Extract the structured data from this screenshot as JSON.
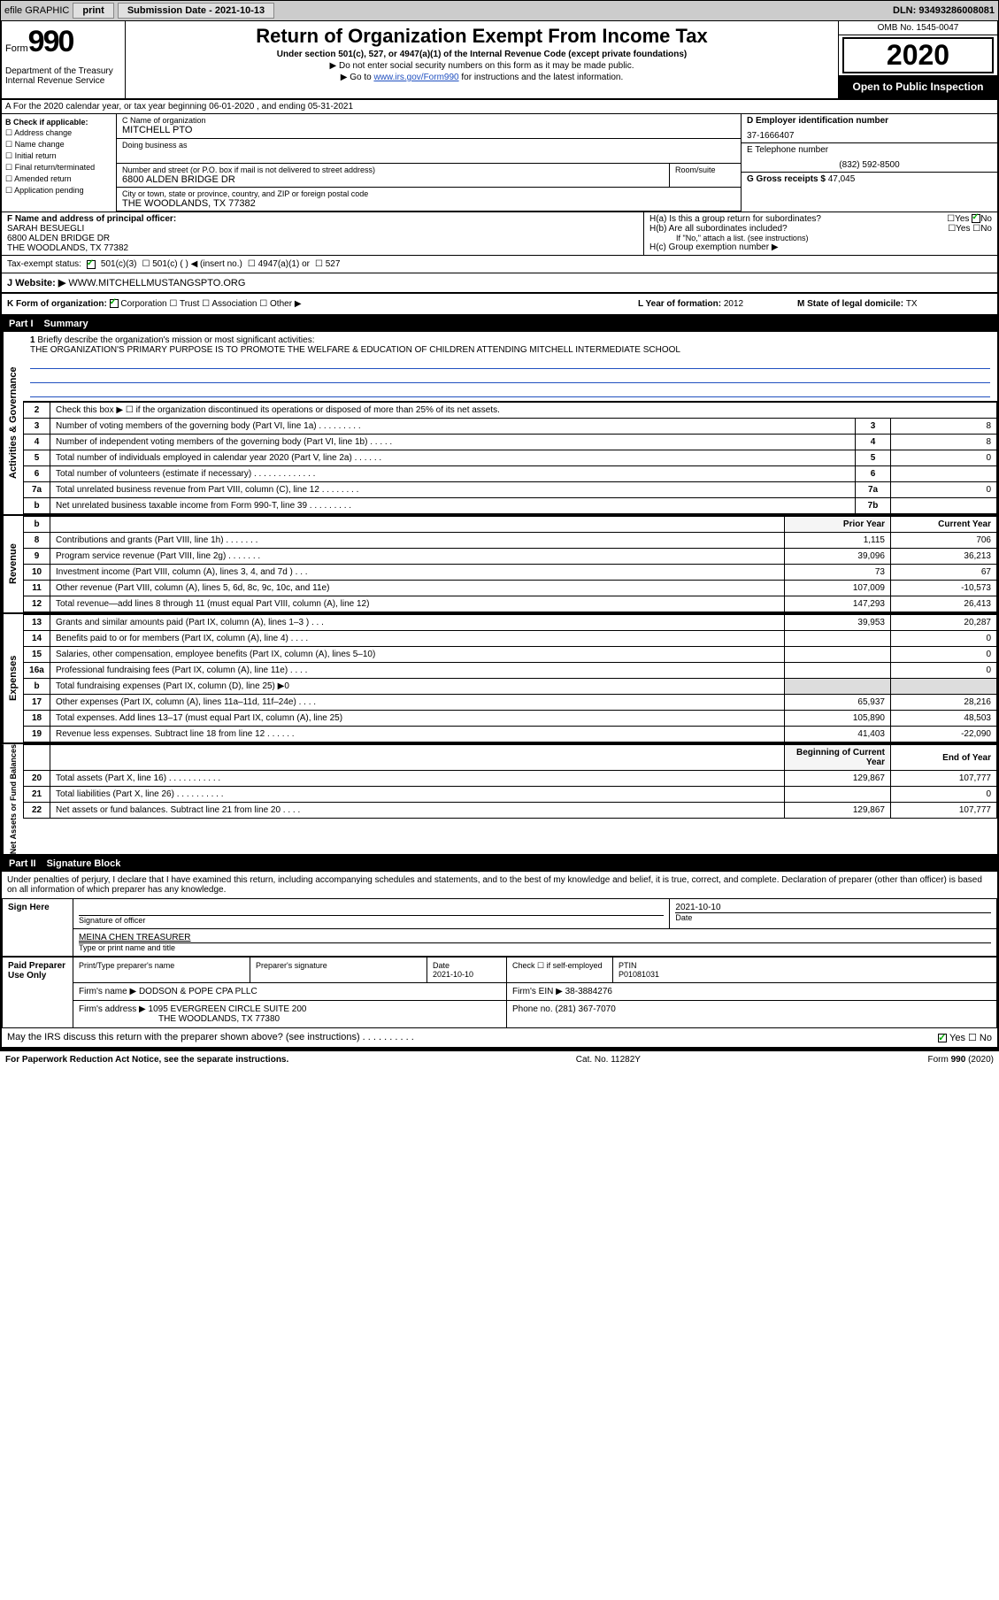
{
  "topbar": {
    "efile": "efile GRAPHIC",
    "print": "print",
    "subdate_label": "Submission Date - 2021-10-13",
    "dln": "DLN: 93493286008081"
  },
  "header": {
    "form_word": "Form",
    "form_num": "990",
    "dept": "Department of the Treasury\nInternal Revenue Service",
    "title": "Return of Organization Exempt From Income Tax",
    "sub": "Under section 501(c), 527, or 4947(a)(1) of the Internal Revenue Code (except private foundations)",
    "note1": "▶ Do not enter social security numbers on this form as it may be made public.",
    "note2_pre": "▶ Go to ",
    "note2_link": "www.irs.gov/Form990",
    "note2_post": " for instructions and the latest information.",
    "omb": "OMB No. 1545-0047",
    "year": "2020",
    "open": "Open to Public Inspection"
  },
  "rowA": "A For the 2020 calendar year, or tax year beginning 06-01-2020   , and ending 05-31-2021",
  "colB": {
    "hdr": "B Check if applicable:",
    "items": [
      "Address change",
      "Name change",
      "Initial return",
      "Final return/terminated",
      "Amended return",
      "Application pending"
    ]
  },
  "colC": {
    "name_lbl": "C Name of organization",
    "name": "MITCHELL PTO",
    "dba_lbl": "Doing business as",
    "dba": "",
    "addr_lbl": "Number and street (or P.O. box if mail is not delivered to street address)",
    "room_lbl": "Room/suite",
    "addr": "6800 ALDEN BRIDGE DR",
    "city_lbl": "City or town, state or province, country, and ZIP or foreign postal code",
    "city": "THE WOODLANDS, TX  77382"
  },
  "colD": {
    "ein_lbl": "D Employer identification number",
    "ein": "37-1666407",
    "tel_lbl": "E Telephone number",
    "tel": "(832) 592-8500",
    "gross_lbl": "G Gross receipts $ ",
    "gross": "47,045"
  },
  "colF": {
    "lbl": "F Name and address of principal officer:",
    "name": "SARAH BESUEGLI",
    "addr1": "6800 ALDEN BRIDGE DR",
    "addr2": "THE WOODLANDS, TX  77382"
  },
  "colH": {
    "a": "H(a)  Is this a group return for subordinates?",
    "b": "H(b)  Are all subordinates included?",
    "bnote": "If \"No,\" attach a list. (see instructions)",
    "c": "H(c)  Group exemption number ▶"
  },
  "taxStatus": {
    "lbl": "Tax-exempt status:",
    "opt1": "501(c)(3)",
    "opt2": "501(c) (  ) ◀ (insert no.)",
    "opt3": "4947(a)(1) or",
    "opt4": "527"
  },
  "website": {
    "lbl": "J   Website: ▶",
    "val": "WWW.MITCHELLMUSTANGSPTO.ORG"
  },
  "rowK": {
    "lbl": "K Form of organization:",
    "opts": [
      "Corporation",
      "Trust",
      "Association",
      "Other ▶"
    ],
    "year_lbl": "L Year of formation: ",
    "year": "2012",
    "state_lbl": "M State of legal domicile: ",
    "state": "TX"
  },
  "part1": {
    "pn": "Part I",
    "pt": "Summary"
  },
  "line1": {
    "num": "1",
    "desc": "Briefly describe the organization's mission or most significant activities:",
    "mission": "THE ORGANIZATION'S PRIMARY PURPOSE IS TO PROMOTE THE WELFARE & EDUCATION OF CHILDREN ATTENDING MITCHELL INTERMEDIATE SCHOOL"
  },
  "govLines": [
    {
      "n": "2",
      "d": "Check this box ▶ ☐  if the organization discontinued its operations or disposed of more than 25% of its net assets.",
      "b": "",
      "v": ""
    },
    {
      "n": "3",
      "d": "Number of voting members of the governing body (Part VI, line 1a)  .   .   .   .   .   .   .   .   .",
      "b": "3",
      "v": "8"
    },
    {
      "n": "4",
      "d": "Number of independent voting members of the governing body (Part VI, line 1b)  .   .   .   .   .",
      "b": "4",
      "v": "8"
    },
    {
      "n": "5",
      "d": "Total number of individuals employed in calendar year 2020 (Part V, line 2a)  .   .   .   .   .   .",
      "b": "5",
      "v": "0"
    },
    {
      "n": "6",
      "d": "Total number of volunteers (estimate if necessary)   .   .   .   .   .   .   .   .   .   .   .   .   .",
      "b": "6",
      "v": ""
    },
    {
      "n": "7a",
      "d": "Total unrelated business revenue from Part VIII, column (C), line 12  .   .   .   .   .   .   .   .",
      "b": "7a",
      "v": "0"
    },
    {
      "n": "b",
      "d": "Net unrelated business taxable income from Form 990-T, line 39   .   .   .   .   .   .   .   .   .",
      "b": "7b",
      "v": ""
    }
  ],
  "revHdr": {
    "pri": "Prior Year",
    "cur": "Current Year"
  },
  "revLines": [
    {
      "n": "8",
      "d": "Contributions and grants (Part VIII, line 1h)   .   .   .   .   .   .   .",
      "p": "1,115",
      "c": "706"
    },
    {
      "n": "9",
      "d": "Program service revenue (Part VIII, line 2g)   .   .   .   .   .   .   .",
      "p": "39,096",
      "c": "36,213"
    },
    {
      "n": "10",
      "d": "Investment income (Part VIII, column (A), lines 3, 4, and 7d )  .   .   .",
      "p": "73",
      "c": "67"
    },
    {
      "n": "11",
      "d": "Other revenue (Part VIII, column (A), lines 5, 6d, 8c, 9c, 10c, and 11e)",
      "p": "107,009",
      "c": "-10,573"
    },
    {
      "n": "12",
      "d": "Total revenue—add lines 8 through 11 (must equal Part VIII, column (A), line 12)",
      "p": "147,293",
      "c": "26,413"
    }
  ],
  "expLines": [
    {
      "n": "13",
      "d": "Grants and similar amounts paid (Part IX, column (A), lines 1–3 )  .   .   .",
      "p": "39,953",
      "c": "20,287"
    },
    {
      "n": "14",
      "d": "Benefits paid to or for members (Part IX, column (A), line 4)  .   .   .   .",
      "p": "",
      "c": "0"
    },
    {
      "n": "15",
      "d": "Salaries, other compensation, employee benefits (Part IX, column (A), lines 5–10)",
      "p": "",
      "c": "0"
    },
    {
      "n": "16a",
      "d": "Professional fundraising fees (Part IX, column (A), line 11e)  .   .   .   .",
      "p": "",
      "c": "0"
    },
    {
      "n": "b",
      "d": "Total fundraising expenses (Part IX, column (D), line 25) ▶0",
      "p": "SHADE",
      "c": "SHADE"
    },
    {
      "n": "17",
      "d": "Other expenses (Part IX, column (A), lines 11a–11d, 11f–24e)  .   .   .   .",
      "p": "65,937",
      "c": "28,216"
    },
    {
      "n": "18",
      "d": "Total expenses. Add lines 13–17 (must equal Part IX, column (A), line 25)",
      "p": "105,890",
      "c": "48,503"
    },
    {
      "n": "19",
      "d": "Revenue less expenses. Subtract line 18 from line 12  .   .   .   .   .   .",
      "p": "41,403",
      "c": "-22,090"
    }
  ],
  "netHdr": {
    "b": "Beginning of Current Year",
    "e": "End of Year"
  },
  "netLines": [
    {
      "n": "20",
      "d": "Total assets (Part X, line 16)  .   .   .   .   .   .   .   .   .   .   .",
      "p": "129,867",
      "c": "107,777"
    },
    {
      "n": "21",
      "d": "Total liabilities (Part X, line 26)  .   .   .   .   .   .   .   .   .   .",
      "p": "",
      "c": "0"
    },
    {
      "n": "22",
      "d": "Net assets or fund balances. Subtract line 21 from line 20  .   .   .   .",
      "p": "129,867",
      "c": "107,777"
    }
  ],
  "part2": {
    "pn": "Part II",
    "pt": "Signature Block"
  },
  "sigIntro": "Under penalties of perjury, I declare that I have examined this return, including accompanying schedules and statements, and to the best of my knowledge and belief, it is true, correct, and complete. Declaration of preparer (other than officer) is based on all information of which preparer has any knowledge.",
  "signHere": {
    "lbl": "Sign Here",
    "sig_lbl": "Signature of officer",
    "date_lbl": "Date",
    "date": "2021-10-10",
    "name": "MEINA CHEN  TREASURER",
    "name_lbl": "Type or print name and title"
  },
  "paidPrep": {
    "lbl": "Paid Preparer Use Only",
    "cols": [
      "Print/Type preparer's name",
      "Preparer's signature",
      "Date",
      "",
      "PTIN"
    ],
    "date": "2021-10-10",
    "check_lbl": "Check ☐ if self-employed",
    "ptin": "P01081031",
    "firm_lbl": "Firm's name    ▶",
    "firm": "DODSON & POPE CPA PLLC",
    "ein_lbl": "Firm's EIN ▶",
    "ein": "38-3884276",
    "addr_lbl": "Firm's address ▶",
    "addr1": "1095 EVERGREEN CIRCLE SUITE 200",
    "addr2": "THE WOODLANDS, TX  77380",
    "phone_lbl": "Phone no.",
    "phone": "(281) 367-7070"
  },
  "discuss": "May the IRS discuss this return with the preparer shown above? (see instructions)   .   .   .   .   .   .   .   .   .   .",
  "footer": {
    "left": "For Paperwork Reduction Act Notice, see the separate instructions.",
    "mid": "Cat. No. 11282Y",
    "right": "Form 990 (2020)"
  },
  "vtabs": {
    "gov": "Activities & Governance",
    "rev": "Revenue",
    "exp": "Expenses",
    "net": "Net Assets or Fund Balances"
  }
}
